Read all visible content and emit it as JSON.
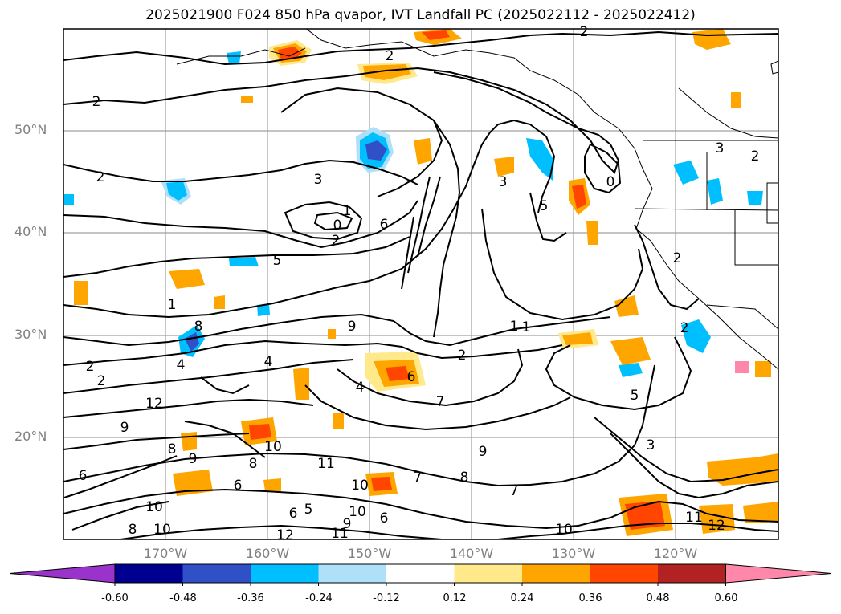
{
  "title": "2025021900 F024 850 hPa qvapor, IVT Landfall PC (2025022112 - 2025022412)",
  "map": {
    "lat_labels": [
      "50°N",
      "40°N",
      "30°N",
      "20°N"
    ],
    "lon_labels": [
      "170°W",
      "160°W",
      "150°W",
      "140°W",
      "130°W",
      "120°W"
    ],
    "contour_labels": [
      "2",
      "2",
      "2",
      "2",
      "3",
      "1",
      "0",
      "2",
      "6",
      "5",
      "1",
      "0",
      "3",
      "5",
      "4",
      "3",
      "2",
      "2",
      "2",
      "1",
      "9",
      "1",
      "2",
      "6",
      "7",
      "5",
      "4",
      "4",
      "2",
      "2",
      "9",
      "8",
      "10",
      "12",
      "11",
      "9",
      "8",
      "7",
      "6",
      "10",
      "10",
      "9",
      "8",
      "6",
      "10",
      "6",
      "7",
      "8",
      "6",
      "5",
      "9",
      "10",
      "11",
      "12",
      "10",
      "11",
      "12",
      "3",
      "8"
    ]
  },
  "colorbar": {
    "labels": [
      "-0.60",
      "-0.48",
      "-0.36",
      "-0.24",
      "-0.12",
      "0.12",
      "0.24",
      "0.36",
      "0.48",
      "0.60"
    ],
    "colors": [
      "#9933cc",
      "#000090",
      "#3050c8",
      "#00bfff",
      "#aee0fa",
      "#ffffff",
      "#ffe98a",
      "#ffa500",
      "#ff4500",
      "#b22222",
      "#ff88aa"
    ]
  }
}
